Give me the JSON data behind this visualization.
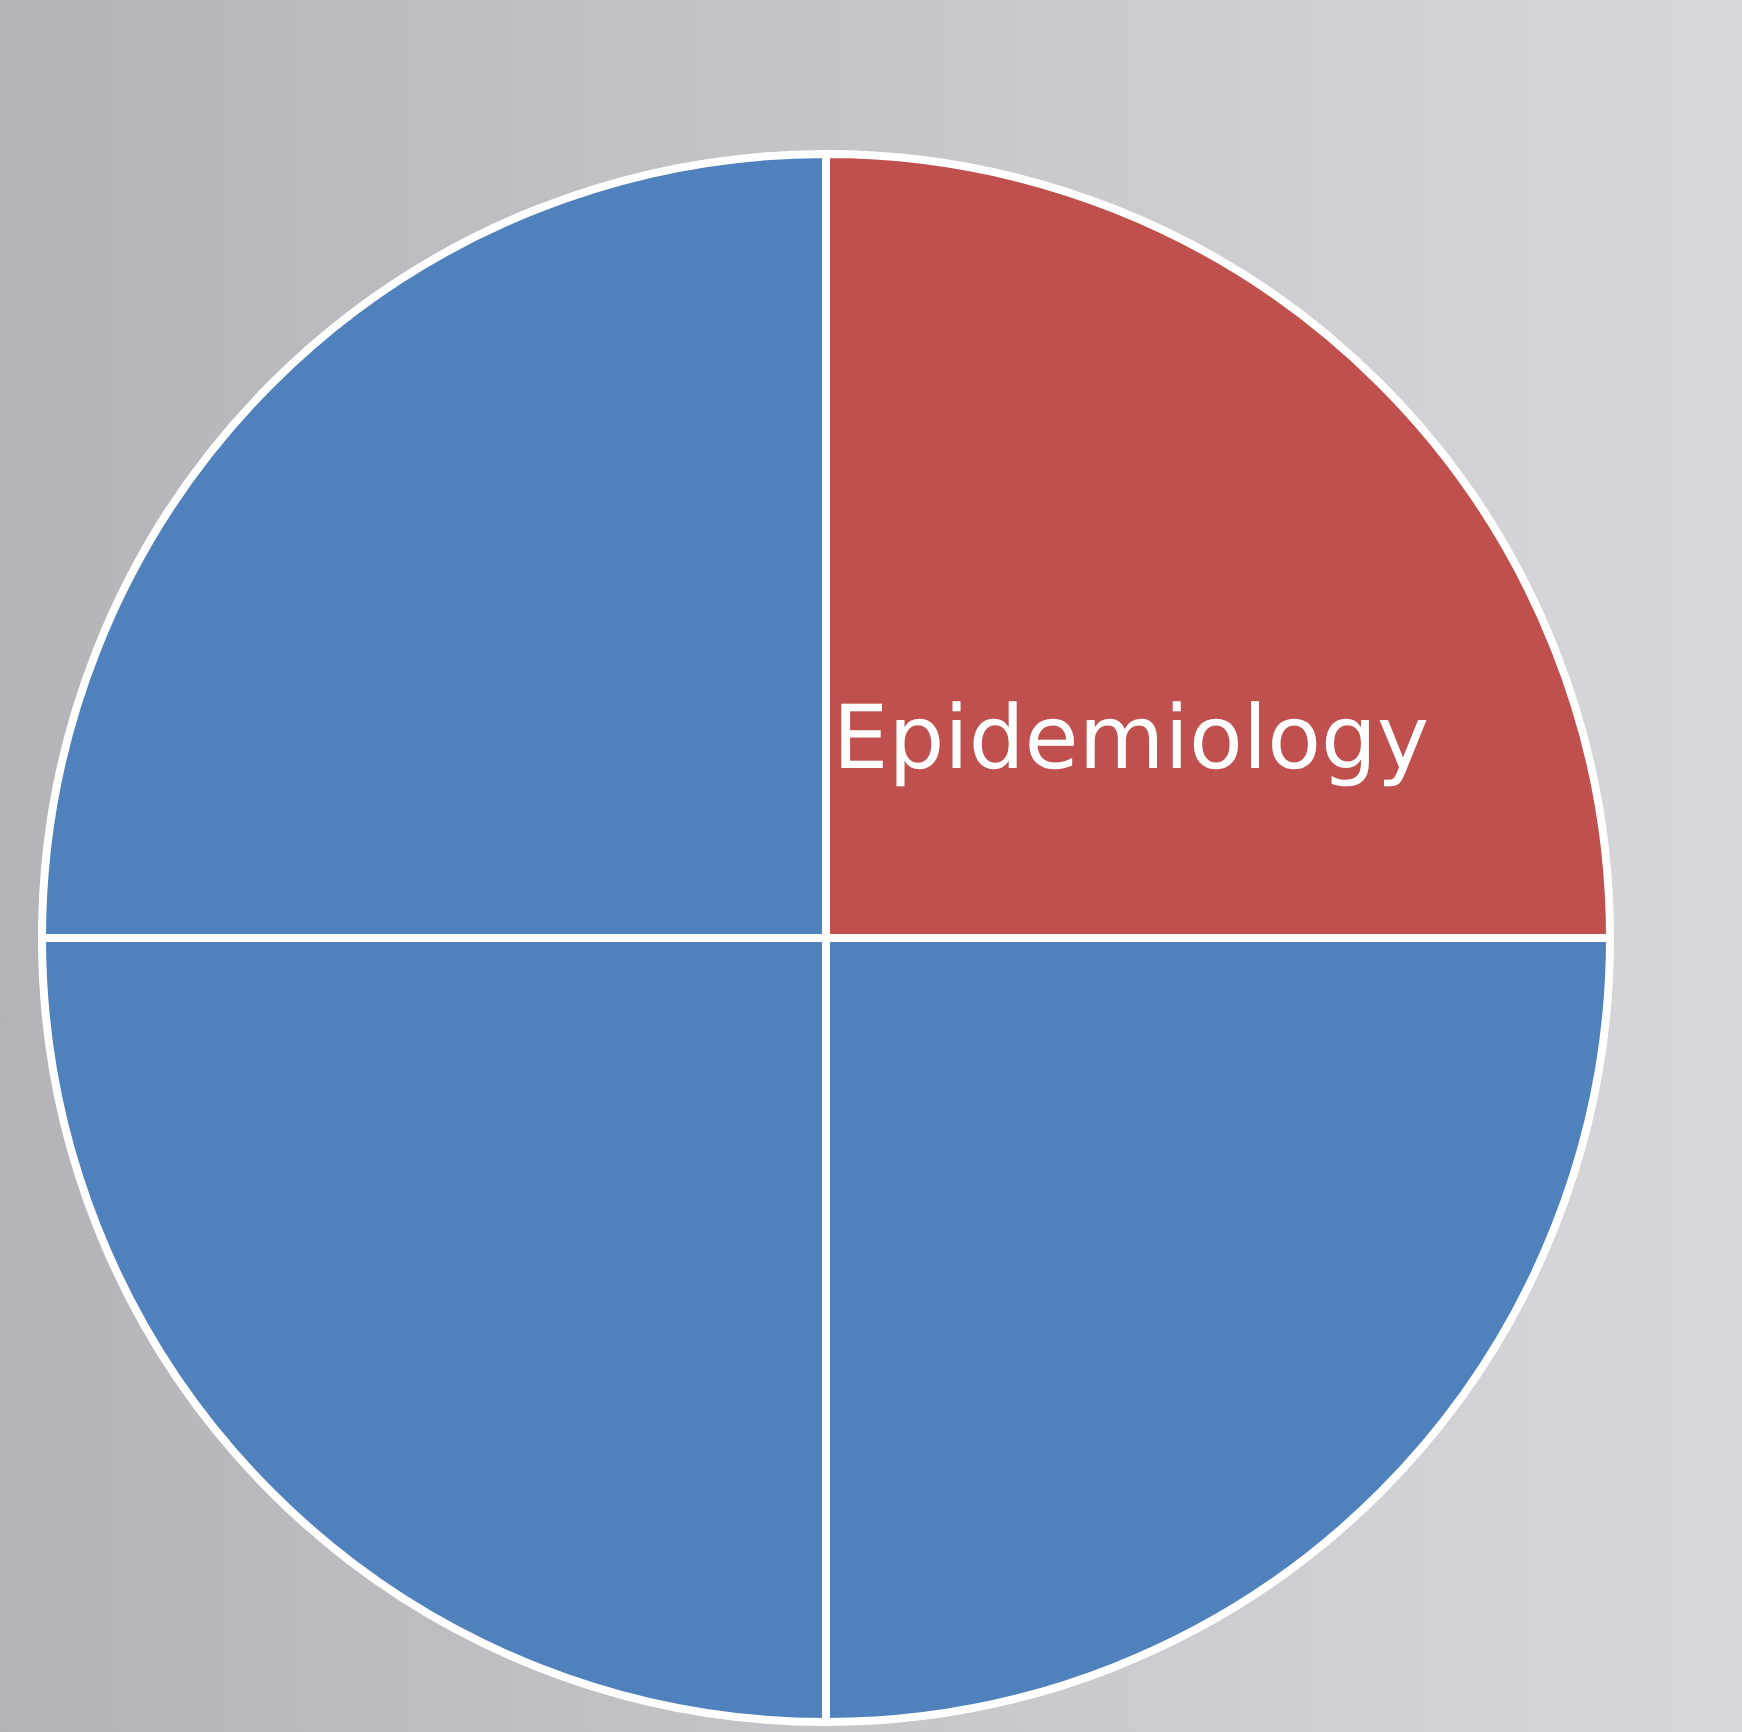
{
  "chart_data": {
    "type": "pie",
    "categories": [
      "Epidemiology",
      null,
      null,
      null
    ],
    "values": [
      25,
      25,
      25,
      25
    ],
    "colors": [
      "#c0504d",
      "#4f81bd",
      "#4f81bd",
      "#4f81bd"
    ]
  }
}
